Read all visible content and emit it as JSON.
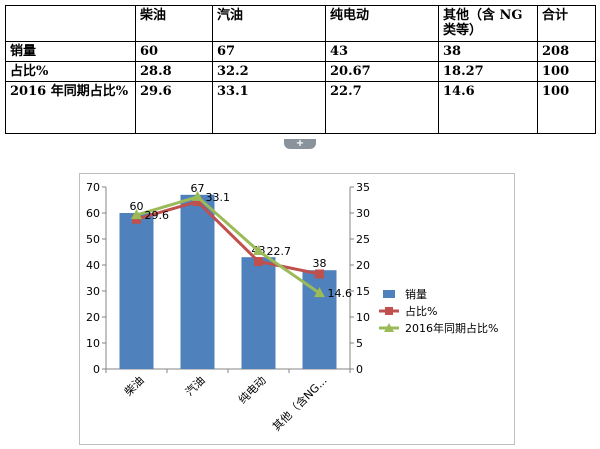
{
  "table": {
    "header": [
      "",
      "柴油",
      "汽油",
      "纯电动",
      "其他（含 NG 类等）",
      "合计"
    ],
    "rows": [
      [
        "销量",
        "60",
        "67",
        "43",
        "38",
        "208"
      ],
      [
        "占比%",
        "28.8",
        "32.2",
        "20.67",
        "18.27",
        "100"
      ],
      [
        "2016 年同期占比%",
        "29.6",
        "33.1",
        "22.7",
        "14.6",
        "100"
      ]
    ]
  },
  "collapse_handle": {
    "glyph": "+"
  },
  "chart_data": {
    "type": "bar",
    "categories": [
      "柴油",
      "汽油",
      "纯电动",
      "其他（含NG..."
    ],
    "series": [
      {
        "name": "销量",
        "type": "bar",
        "axis": "left",
        "values": [
          60,
          67,
          43,
          38
        ],
        "color": "#4f81bd",
        "data_labels": [
          "60",
          "67",
          "43",
          "38"
        ]
      },
      {
        "name": "占比%",
        "type": "line",
        "axis": "right",
        "values": [
          28.8,
          32.2,
          20.67,
          18.27
        ],
        "color": "#c0504d",
        "marker": "square"
      },
      {
        "name": "2016年同期占比%",
        "type": "line",
        "axis": "right",
        "values": [
          29.6,
          33.1,
          22.7,
          14.6
        ],
        "color": "#9bbb59",
        "marker": "triangle",
        "data_labels": [
          "29.6",
          "33.1",
          "22.7",
          "14.6"
        ]
      }
    ],
    "y_left": {
      "range": [
        0,
        70
      ],
      "ticks": [
        0,
        10,
        20,
        30,
        40,
        50,
        60,
        70
      ]
    },
    "y_right": {
      "range": [
        0,
        35
      ],
      "ticks": [
        0,
        5,
        10,
        15,
        20,
        25,
        30,
        35
      ]
    },
    "grid": false,
    "legend_position": "right"
  }
}
